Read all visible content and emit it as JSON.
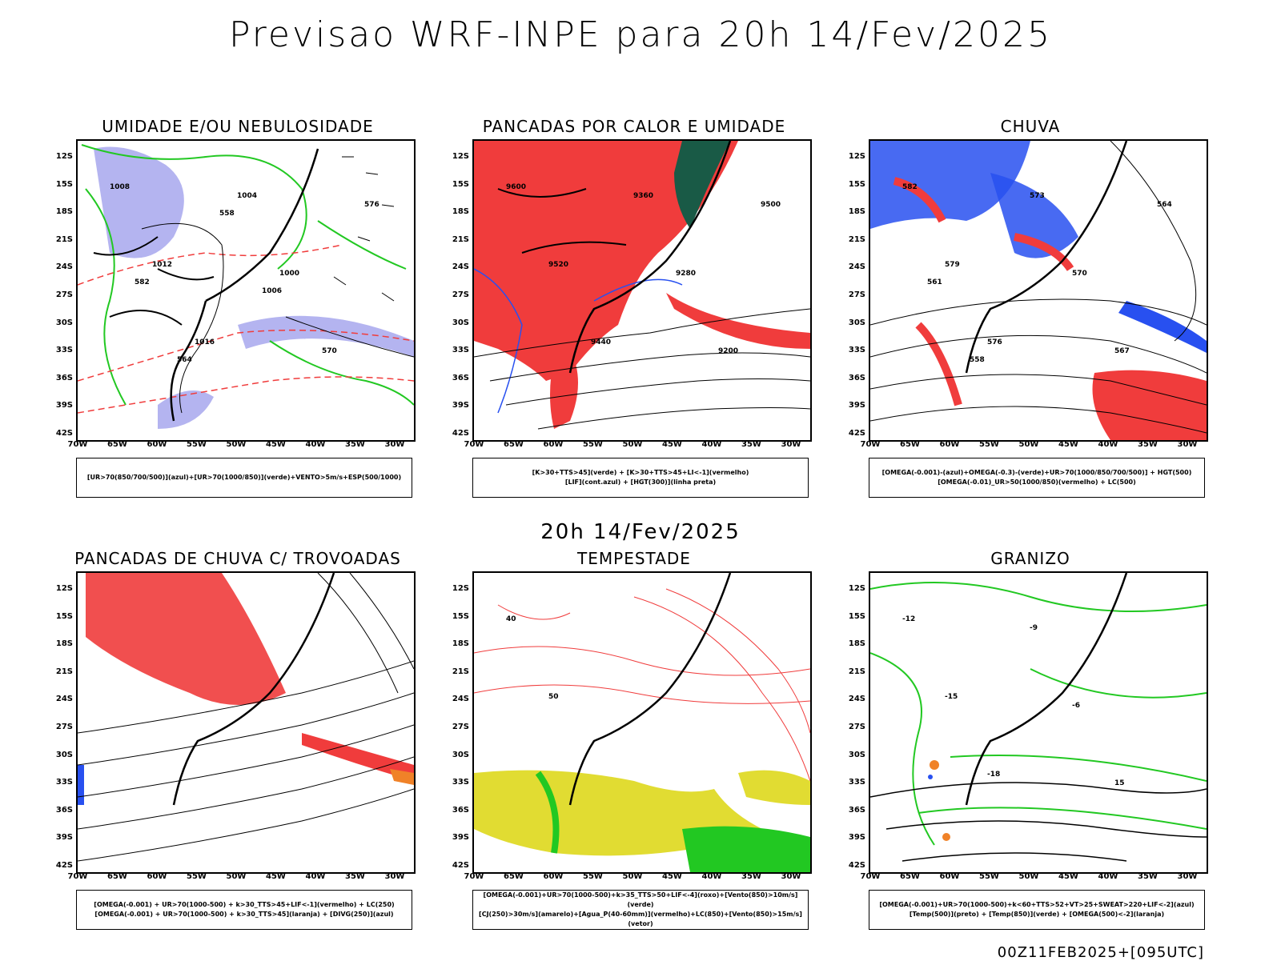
{
  "main_title": "Previsao WRF-INPE  para 20h 14/Fev/2025",
  "mid_title": "20h 14/Fev/2025",
  "footer": "00Z11FEB2025+[095UTC]",
  "axes": {
    "lat_labels": [
      "12S",
      "15S",
      "18S",
      "21S",
      "24S",
      "27S",
      "30S",
      "33S",
      "36S",
      "39S",
      "42S"
    ],
    "lon_labels": [
      "70W",
      "65W",
      "60W",
      "55W",
      "50W",
      "45W",
      "40W",
      "35W",
      "30W"
    ]
  },
  "colors": {
    "red": "#f03c3c",
    "green": "#22c822",
    "blue": "#2850f0",
    "lavender": "#b4b4f0",
    "yellow": "#e1dc32",
    "dark_green": "#195a46",
    "orange": "#f08228"
  },
  "panels": [
    {
      "title": "UMIDADE E/OU NEBULOSIDADE",
      "legend": [
        "[UR>70(850/700/500)](azul)+[UR>70(1000/850)](verde)+VENTO>5m/s+ESP(500/1000)"
      ],
      "labels": [
        "1008",
        "1012",
        "1016",
        "1004",
        "1000",
        "570",
        "576",
        "582",
        "564",
        "558",
        "1006"
      ]
    },
    {
      "title": "PANCADAS POR CALOR E UMIDADE",
      "legend": [
        "[K>30+TTS>45](verde) + [K>30+TTS>45+LI<-1](vermelho)",
        "[LIF](cont.azul) + [HGT(300)](linha preta)"
      ],
      "labels": [
        "9600",
        "9520",
        "9440",
        "9360",
        "9280",
        "9200",
        "9500"
      ]
    },
    {
      "title": "CHUVA",
      "legend": [
        "[OMEGA(-0.001)-(azul)+OMEGA(-0.3)-(verde)+UR>70(1000/850/700/500)] + HGT(500)",
        "[OMEGA(-0.01)_UR>50(1000/850)(vermelho) + LC(500)"
      ],
      "labels": [
        "582",
        "579",
        "576",
        "573",
        "570",
        "567",
        "564",
        "561",
        "558"
      ]
    },
    {
      "title": "PANCADAS DE CHUVA C/ TROVOADAS",
      "legend": [
        "[OMEGA(-0.001) + UR>70(1000-500) + k>30_TTS>45+LIF<-1](vermelho) + LC(250)",
        "[OMEGA(-0.001) + UR>70(1000-500) + k>30_TTS>45](laranja) + [DIVG(250)](azul)"
      ],
      "labels": []
    },
    {
      "title": "TEMPESTADE",
      "legend": [
        "[OMEGA(-0.001)+UR>70(1000-500)+k>35_TTS>50+LIF<-4](roxo)+[Vento(850)>10m/s](verde)",
        "[CJ(250)>30m/s](amarelo)+[Agua_P(40-60mm)](vermelho)+LC(850)+[Vento(850)>15m/s](vetor)"
      ],
      "labels": [
        "40",
        "50"
      ]
    },
    {
      "title": "GRANIZO",
      "legend": [
        "[OMEGA(-0.001)+UR>70(1000-500)+k<60+TTS>52+VT>25+SWEAT>220+LIF<-2](azul)",
        "[Temp(500)](preto) + [Temp(850)](verde) + [OMEGA(500)<-2](laranja)"
      ],
      "labels": [
        "-12",
        "-15",
        "-18",
        "-9",
        "-6",
        "15"
      ]
    }
  ]
}
